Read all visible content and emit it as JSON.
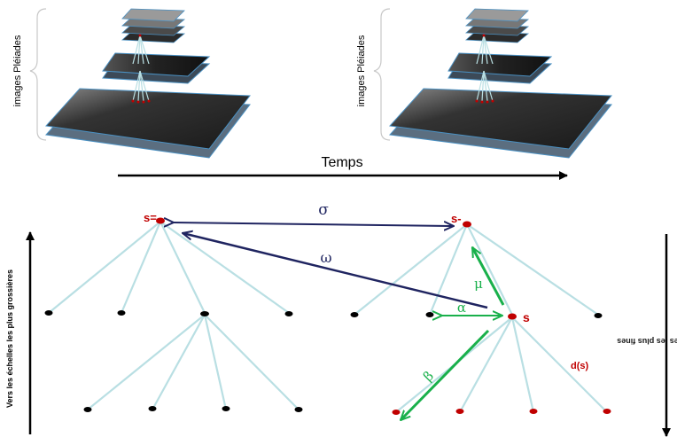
{
  "top": {
    "stack_label_left": "images Pléiades",
    "stack_label_right": "images Pléiades",
    "time_label": "Temps"
  },
  "tree": {
    "node_s_eq": "s=",
    "node_s_minus": "s-",
    "node_s": "s",
    "node_ds": "d(s)",
    "sigma": "σ",
    "omega": "ω",
    "mu": "μ",
    "alpha": "α",
    "beta": "β"
  },
  "axes": {
    "left_label": "Vers les échelles les plus grossières",
    "right_label": "Vers les échelles les plus fines"
  },
  "colors": {
    "navy": "#1f2460",
    "green": "#19b04b",
    "red": "#c00000",
    "edge": "#b9dfe3",
    "black": "#000000"
  }
}
